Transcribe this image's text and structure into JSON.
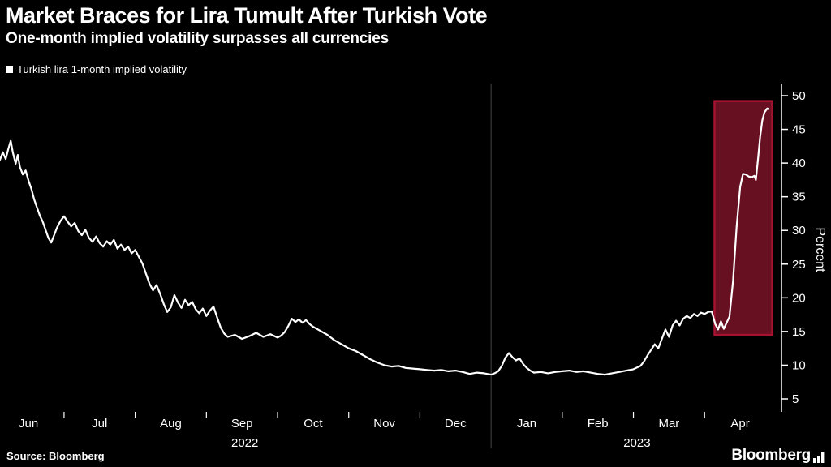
{
  "header": {
    "title": "Market Braces for Lira Tumult After Turkish Vote",
    "subtitle": "One-month implied volatility surpasses all currencies"
  },
  "legend": {
    "label": "Turkish lira 1-month implied volatility",
    "marker_color": "#ffffff"
  },
  "footer": {
    "source": "Source: Bloomberg",
    "brand": "Bloomberg"
  },
  "colors": {
    "background": "#000000",
    "line": "#ffffff",
    "text": "#ffffff",
    "axis": "#ffffff",
    "divider": "#474747",
    "highlight_fill": "#671021",
    "highlight_stroke": "#a61331"
  },
  "chart_data": {
    "type": "line",
    "title": "Market Braces for Lira Tumult After Turkish Vote",
    "subtitle": "One-month implied volatility surpasses all currencies",
    "ylabel": "Percent",
    "legend": [
      "Turkish lira 1-month implied volatility"
    ],
    "legend_position": "top-left",
    "grid": false,
    "y_axis_side": "right",
    "y_ticks": [
      5,
      10,
      15,
      20,
      25,
      30,
      35,
      40,
      45,
      50
    ],
    "ylim": [
      3.4,
      52.5
    ],
    "xlim": [
      0,
      10.98
    ],
    "x_unit": "months along axis; 0 = plot start (early Jun 2022), 1 unit = 1 month, ends late Apr 2023",
    "month_labels": [
      {
        "label": "Jun",
        "t": 0.4
      },
      {
        "label": "Jul",
        "t": 1.4
      },
      {
        "label": "Aug",
        "t": 2.4
      },
      {
        "label": "Sep",
        "t": 3.4
      },
      {
        "label": "Oct",
        "t": 4.4
      },
      {
        "label": "Nov",
        "t": 5.4
      },
      {
        "label": "Dec",
        "t": 6.4
      },
      {
        "label": "Jan",
        "t": 7.4
      },
      {
        "label": "Feb",
        "t": 8.4
      },
      {
        "label": "Mar",
        "t": 9.4
      },
      {
        "label": "Apr",
        "t": 10.4
      }
    ],
    "year_labels": [
      {
        "label": "2022",
        "t": 3.44
      },
      {
        "label": "2023",
        "t": 8.95
      }
    ],
    "month_boundaries_t": [
      0.9,
      1.9,
      2.9,
      3.9,
      4.9,
      5.9,
      6.9,
      7.9,
      8.9,
      9.9
    ],
    "year_divider_t": 6.9,
    "highlight_region": {
      "t0": 10.04,
      "t1": 10.85,
      "v0": 14.5,
      "v1": 49.2,
      "note": "April 2023 volatility spike"
    },
    "series": [
      {
        "name": "Turkish lira 1-month implied volatility",
        "points": [
          [
            0,
            40.5
          ],
          [
            0.04,
            41.6
          ],
          [
            0.08,
            40.6
          ],
          [
            0.12,
            42.2
          ],
          [
            0.15,
            43.3
          ],
          [
            0.18,
            41.6
          ],
          [
            0.22,
            39.9
          ],
          [
            0.25,
            41.2
          ],
          [
            0.28,
            39.4
          ],
          [
            0.32,
            38.3
          ],
          [
            0.36,
            38.9
          ],
          [
            0.4,
            37.4
          ],
          [
            0.44,
            36.2
          ],
          [
            0.48,
            34.6
          ],
          [
            0.52,
            33.4
          ],
          [
            0.56,
            32.2
          ],
          [
            0.6,
            31.3
          ],
          [
            0.64,
            30.1
          ],
          [
            0.68,
            28.9
          ],
          [
            0.72,
            28.2
          ],
          [
            0.76,
            29.3
          ],
          [
            0.8,
            30.4
          ],
          [
            0.85,
            31.4
          ],
          [
            0.9,
            32.1
          ],
          [
            0.95,
            31.3
          ],
          [
            1.0,
            30.6
          ],
          [
            1.05,
            31.1
          ],
          [
            1.1,
            29.9
          ],
          [
            1.15,
            29.3
          ],
          [
            1.2,
            30.1
          ],
          [
            1.25,
            28.9
          ],
          [
            1.3,
            28.3
          ],
          [
            1.35,
            29.1
          ],
          [
            1.4,
            28.1
          ],
          [
            1.45,
            27.6
          ],
          [
            1.5,
            28.4
          ],
          [
            1.55,
            27.9
          ],
          [
            1.6,
            28.6
          ],
          [
            1.65,
            27.3
          ],
          [
            1.7,
            27.9
          ],
          [
            1.75,
            27.1
          ],
          [
            1.8,
            27.6
          ],
          [
            1.85,
            26.6
          ],
          [
            1.9,
            27.1
          ],
          [
            1.95,
            26.1
          ],
          [
            2.0,
            25.1
          ],
          [
            2.05,
            23.6
          ],
          [
            2.1,
            22.1
          ],
          [
            2.15,
            21.1
          ],
          [
            2.2,
            21.9
          ],
          [
            2.25,
            20.6
          ],
          [
            2.3,
            19.1
          ],
          [
            2.35,
            17.9
          ],
          [
            2.4,
            18.6
          ],
          [
            2.45,
            20.4
          ],
          [
            2.5,
            19.3
          ],
          [
            2.55,
            18.5
          ],
          [
            2.6,
            19.7
          ],
          [
            2.65,
            18.9
          ],
          [
            2.7,
            19.4
          ],
          [
            2.75,
            18.3
          ],
          [
            2.8,
            17.7
          ],
          [
            2.85,
            18.4
          ],
          [
            2.9,
            17.3
          ],
          [
            2.95,
            18.1
          ],
          [
            3.0,
            18.7
          ],
          [
            3.05,
            17.1
          ],
          [
            3.1,
            15.6
          ],
          [
            3.15,
            14.7
          ],
          [
            3.2,
            14.2
          ],
          [
            3.3,
            14.5
          ],
          [
            3.4,
            13.9
          ],
          [
            3.5,
            14.3
          ],
          [
            3.6,
            14.8
          ],
          [
            3.7,
            14.2
          ],
          [
            3.8,
            14.6
          ],
          [
            3.9,
            14.1
          ],
          [
            3.95,
            14.4
          ],
          [
            4.0,
            14.9
          ],
          [
            4.05,
            15.8
          ],
          [
            4.1,
            16.9
          ],
          [
            4.15,
            16.4
          ],
          [
            4.2,
            16.8
          ],
          [
            4.25,
            16.3
          ],
          [
            4.3,
            16.7
          ],
          [
            4.35,
            16.1
          ],
          [
            4.4,
            15.7
          ],
          [
            4.5,
            15.1
          ],
          [
            4.6,
            14.5
          ],
          [
            4.7,
            13.7
          ],
          [
            4.8,
            13.1
          ],
          [
            4.9,
            12.5
          ],
          [
            5.0,
            12.1
          ],
          [
            5.1,
            11.5
          ],
          [
            5.2,
            10.9
          ],
          [
            5.3,
            10.4
          ],
          [
            5.4,
            10.0
          ],
          [
            5.5,
            9.8
          ],
          [
            5.6,
            9.9
          ],
          [
            5.7,
            9.6
          ],
          [
            5.8,
            9.5
          ],
          [
            5.9,
            9.4
          ],
          [
            6.0,
            9.3
          ],
          [
            6.1,
            9.2
          ],
          [
            6.2,
            9.3
          ],
          [
            6.3,
            9.1
          ],
          [
            6.4,
            9.2
          ],
          [
            6.5,
            9.0
          ],
          [
            6.6,
            8.7
          ],
          [
            6.7,
            8.9
          ],
          [
            6.8,
            8.8
          ],
          [
            6.9,
            8.6
          ],
          [
            6.95,
            8.8
          ],
          [
            7.0,
            9.1
          ],
          [
            7.05,
            9.9
          ],
          [
            7.1,
            11.1
          ],
          [
            7.15,
            11.8
          ],
          [
            7.2,
            11.2
          ],
          [
            7.25,
            10.7
          ],
          [
            7.3,
            11.0
          ],
          [
            7.35,
            10.2
          ],
          [
            7.4,
            9.6
          ],
          [
            7.45,
            9.2
          ],
          [
            7.5,
            8.9
          ],
          [
            7.6,
            9.0
          ],
          [
            7.7,
            8.8
          ],
          [
            7.8,
            9.0
          ],
          [
            7.9,
            9.1
          ],
          [
            8.0,
            9.2
          ],
          [
            8.1,
            9.0
          ],
          [
            8.2,
            9.1
          ],
          [
            8.3,
            8.9
          ],
          [
            8.4,
            8.7
          ],
          [
            8.5,
            8.6
          ],
          [
            8.6,
            8.8
          ],
          [
            8.7,
            9.0
          ],
          [
            8.8,
            9.2
          ],
          [
            8.9,
            9.4
          ],
          [
            9.0,
            9.9
          ],
          [
            9.05,
            10.6
          ],
          [
            9.1,
            11.5
          ],
          [
            9.15,
            12.3
          ],
          [
            9.2,
            13.1
          ],
          [
            9.25,
            12.5
          ],
          [
            9.3,
            13.9
          ],
          [
            9.35,
            15.3
          ],
          [
            9.4,
            14.2
          ],
          [
            9.45,
            15.9
          ],
          [
            9.5,
            16.6
          ],
          [
            9.55,
            15.9
          ],
          [
            9.6,
            16.9
          ],
          [
            9.65,
            17.3
          ],
          [
            9.7,
            17.0
          ],
          [
            9.75,
            17.6
          ],
          [
            9.8,
            17.3
          ],
          [
            9.85,
            17.8
          ],
          [
            9.9,
            17.6
          ],
          [
            9.95,
            17.9
          ],
          [
            10.0,
            18.0
          ],
          [
            10.05,
            16.1
          ],
          [
            10.09,
            15.3
          ],
          [
            10.13,
            16.5
          ],
          [
            10.17,
            15.4
          ],
          [
            10.21,
            16.3
          ],
          [
            10.25,
            17.2
          ],
          [
            10.3,
            22.5
          ],
          [
            10.35,
            30.5
          ],
          [
            10.4,
            36.5
          ],
          [
            10.44,
            38.4
          ],
          [
            10.48,
            38.3
          ],
          [
            10.52,
            38.0
          ],
          [
            10.56,
            37.9
          ],
          [
            10.6,
            38.1
          ],
          [
            10.62,
            37.5
          ],
          [
            10.65,
            40.5
          ],
          [
            10.68,
            43.8
          ],
          [
            10.71,
            46.3
          ],
          [
            10.74,
            47.5
          ],
          [
            10.78,
            48.1
          ],
          [
            10.8,
            48.0
          ]
        ]
      }
    ]
  }
}
